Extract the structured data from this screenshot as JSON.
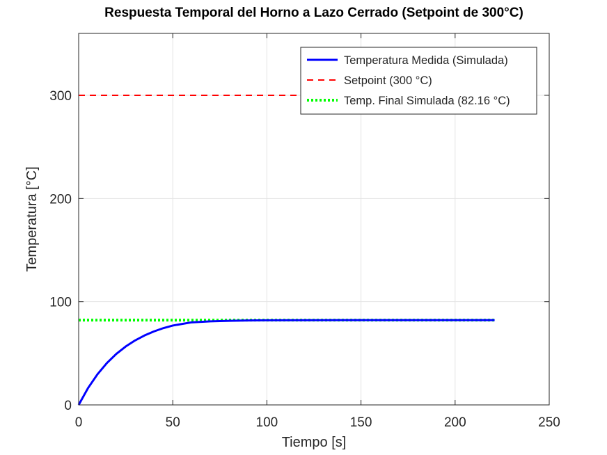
{
  "chart_data": {
    "type": "line",
    "title": "Respuesta Temporal del Horno a Lazo Cerrado (Setpoint de 300°C)",
    "xlabel": "Tiempo [s]",
    "ylabel": "Temperatura [°C]",
    "xlim": [
      0,
      250
    ],
    "ylim": [
      0,
      360
    ],
    "xticks": [
      0,
      50,
      100,
      150,
      200,
      250
    ],
    "yticks": [
      0,
      100,
      200,
      300
    ],
    "xtick_labels": [
      "0",
      "50",
      "100",
      "150",
      "200",
      "250"
    ],
    "ytick_labels": [
      "0",
      "100",
      "200",
      "300"
    ],
    "grid": true,
    "legend_position": "top-right",
    "series": [
      {
        "name": "Temperatura Medida (Simulada)",
        "style": "solid",
        "color": "#0000ff",
        "x": [
          0,
          5,
          10,
          15,
          20,
          25,
          30,
          35,
          40,
          45,
          50,
          60,
          70,
          80,
          90,
          100,
          120,
          140,
          160,
          180,
          200,
          221
        ],
        "y": [
          0,
          16.4,
          29.7,
          40.6,
          49.4,
          56.6,
          62.5,
          67.3,
          71.2,
          74.4,
          76.9,
          80.0,
          81.0,
          81.5,
          81.8,
          82.0,
          82.1,
          82.16,
          82.16,
          82.16,
          82.16,
          82.16
        ]
      },
      {
        "name": "Setpoint (300 °C)",
        "style": "dashed",
        "color": "#ff0000",
        "x": [
          0,
          221
        ],
        "y": [
          300,
          300
        ]
      },
      {
        "name": "Temp. Final Simulada (82.16 °C)",
        "style": "dotted",
        "color": "#00ff00",
        "x": [
          0,
          221
        ],
        "y": [
          82.16,
          82.16
        ]
      }
    ]
  }
}
